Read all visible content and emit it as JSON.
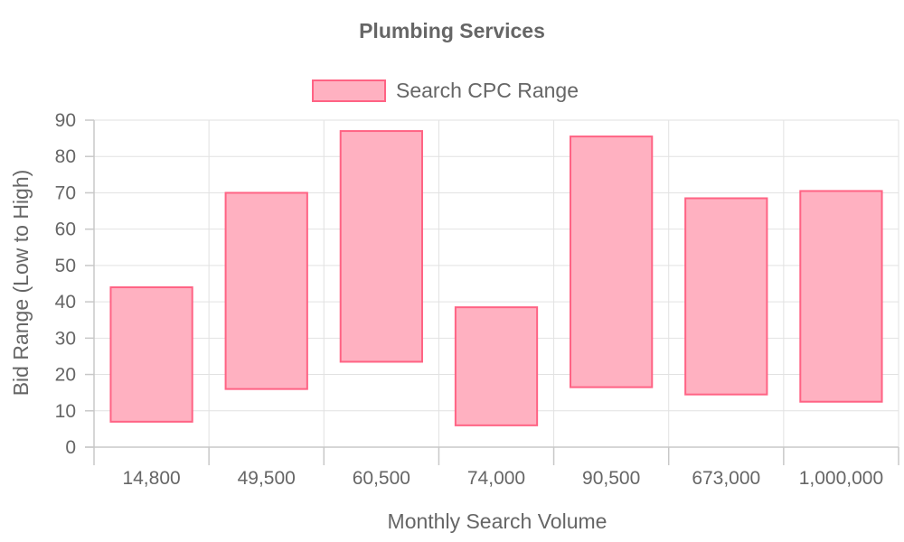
{
  "chart_data": {
    "type": "bar",
    "subtype": "floating-range",
    "title": "Plumbing Services",
    "xlabel": "Monthly Search Volume",
    "ylabel": "Bid Range (Low to High)",
    "ylim": [
      0,
      90
    ],
    "yticks": [
      0,
      10,
      20,
      30,
      40,
      50,
      60,
      70,
      80,
      90
    ],
    "grid": true,
    "legend_position": "top",
    "categories": [
      "14,800",
      "49,500",
      "60,500",
      "74,000",
      "90,500",
      "673,000",
      "1,000,000"
    ],
    "series": [
      {
        "name": "Search CPC Range",
        "fill_color": "#ffb1c1",
        "border_color": "#ff6384",
        "ranges": [
          [
            7,
            44
          ],
          [
            16,
            70
          ],
          [
            23.5,
            87
          ],
          [
            6,
            38.5
          ],
          [
            16.5,
            85.5
          ],
          [
            14.5,
            68.5
          ],
          [
            12.5,
            70.5
          ]
        ]
      }
    ]
  }
}
